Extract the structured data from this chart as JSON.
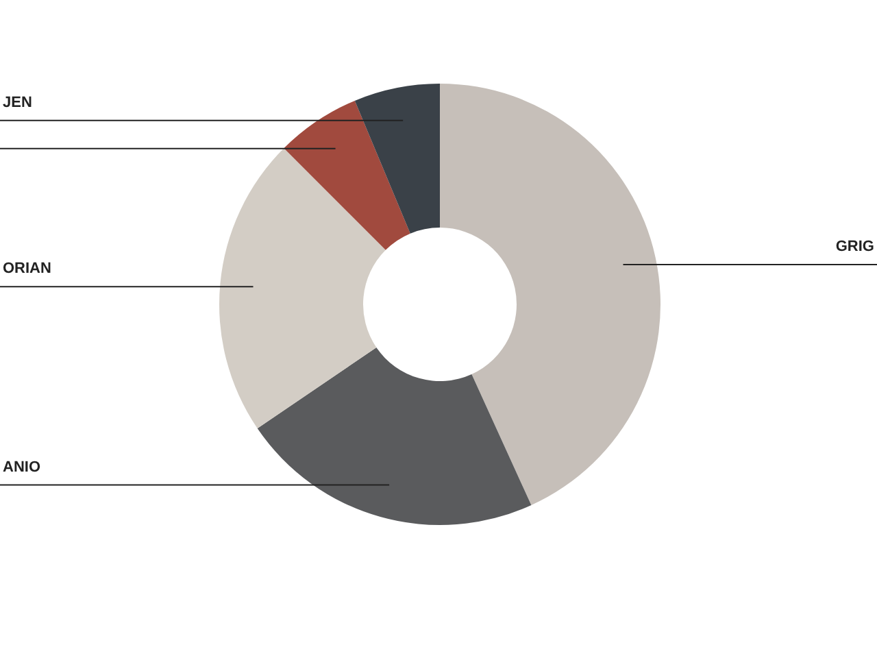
{
  "chart_data": {
    "type": "donut",
    "categories": [
      "GRIG",
      "ANIO",
      "ORIAN",
      null,
      "JEN"
    ],
    "values": [
      43.2,
      22.3,
      22.0,
      6.2,
      6.3
    ],
    "colors": [
      "#c6bfb9",
      "#5a5b5d",
      "#d3cdc5",
      "#a14a3e",
      "#3a4148"
    ]
  }
}
